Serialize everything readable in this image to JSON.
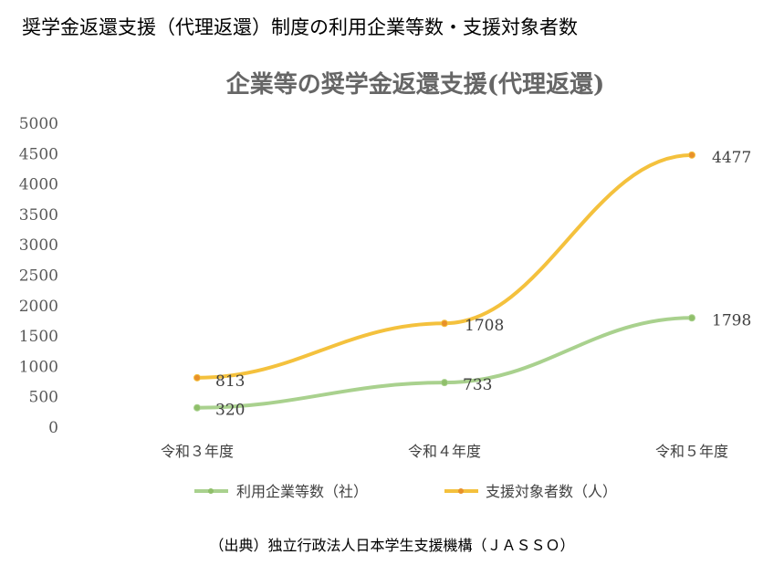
{
  "page_heading": "奨学金返還支援（代理返還）制度の利用企業等数・支援対象者数",
  "source_note": "（出典）独立行政法人日本学生支援機構（ＪＡＳＳＯ）",
  "chart_data": {
    "type": "line",
    "title": "企業等の奨学金返還支援(代理返還)",
    "categories": [
      "令和３年度",
      "令和４年度",
      "令和５年度"
    ],
    "yticks": [
      0,
      500,
      1000,
      1500,
      2000,
      2500,
      3000,
      3500,
      4000,
      4500,
      5000
    ],
    "ylim": [
      0,
      5000
    ],
    "grid": false,
    "legend_position": "bottom",
    "series": [
      {
        "name": "利用企業等数（社）",
        "values": [
          320,
          733,
          1798
        ],
        "color": "#a9d18e"
      },
      {
        "name": "支援対象者数（人）",
        "values": [
          813,
          1708,
          4477
        ],
        "color": "#f4c13d"
      }
    ]
  }
}
